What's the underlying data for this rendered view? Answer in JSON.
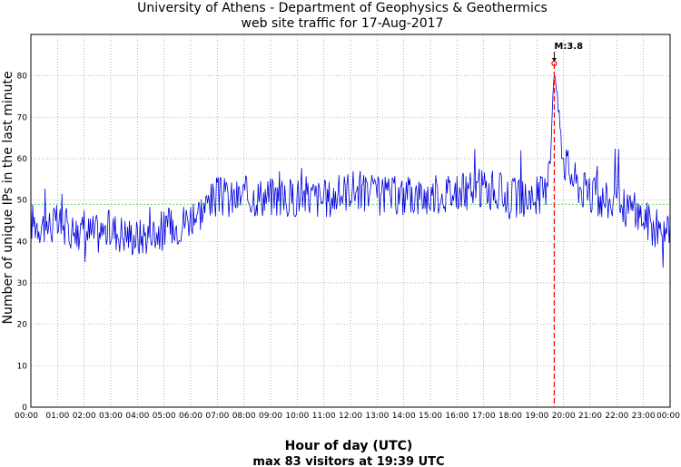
{
  "chart_data": {
    "type": "line",
    "title": [
      "University of Athens - Department of Geophysics & Geothermics",
      "web site traffic for 17-Aug-2017"
    ],
    "xlabel": "Hour of day (UTC)",
    "subtitle": "max 83 visitors at 19:39 UTC",
    "ylabel": "Number of unique IPs in the last minute",
    "xlim_minutes": [
      0,
      1440
    ],
    "ylim": [
      0,
      90
    ],
    "x_ticks": [
      "00:00",
      "01:00",
      "02:00",
      "03:00",
      "04:00",
      "05:00",
      "06:00",
      "07:00",
      "08:00",
      "09:00",
      "10:00",
      "11:00",
      "12:00",
      "13:00",
      "14:00",
      "15:00",
      "16:00",
      "17:00",
      "18:00",
      "19:00",
      "20:00",
      "21:00",
      "22:00",
      "23:00",
      "00:00"
    ],
    "y_ticks": [
      0,
      10,
      20,
      30,
      40,
      50,
      60,
      70,
      80
    ],
    "grid": true,
    "average_line": 49,
    "series": [
      {
        "color": "#0000dd",
        "x_hours": [
          0,
          0.5,
          1,
          1.5,
          2,
          2.5,
          3,
          3.5,
          4,
          4.5,
          5,
          5.5,
          6,
          6.5,
          7,
          7.5,
          8,
          8.5,
          9,
          9.5,
          10,
          10.5,
          11,
          11.5,
          12,
          12.5,
          13,
          13.5,
          14,
          14.5,
          15,
          15.5,
          16,
          16.5,
          17,
          17.5,
          18,
          18.5,
          19,
          19.3,
          19.5,
          19.65,
          19.8,
          20,
          20.3,
          20.5,
          21,
          21.5,
          22,
          22.5,
          23,
          23.5,
          24
        ],
        "values": [
          45,
          44,
          44,
          43,
          42,
          42,
          43,
          42,
          41,
          42,
          43,
          44,
          46,
          48,
          51,
          50,
          51,
          51,
          51,
          50,
          51,
          51,
          50,
          51,
          53,
          52,
          51,
          51,
          51,
          51,
          51,
          52,
          52,
          52,
          53,
          52,
          51,
          50,
          51,
          52,
          60,
          83,
          72,
          60,
          56,
          54,
          51,
          50,
          49,
          48,
          46,
          43,
          41
        ]
      }
    ],
    "event_marker": {
      "time": "19:39",
      "time_hours": 19.65,
      "value": 83,
      "label": "M:3.8",
      "color": "#ff0000"
    }
  }
}
